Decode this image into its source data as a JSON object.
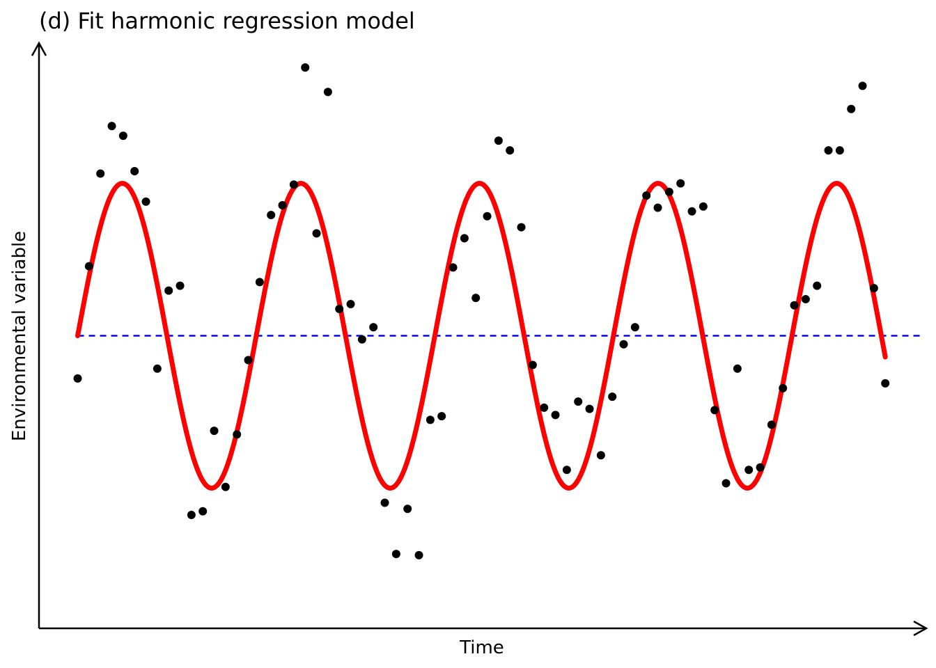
{
  "chart_data": {
    "type": "scatter",
    "title": "(d) Fit harmonic regression model",
    "xlabel": "Time",
    "ylabel": "Environmental variable",
    "x_ticks": false,
    "y_ticks": false,
    "grid": false,
    "xlim": [
      -3.4,
      74.6
    ],
    "ylim": [
      -2.4,
      2.4
    ],
    "mean_line": {
      "y": 0,
      "color": "#0000ff",
      "style": "dashed"
    },
    "fitted_curve": {
      "color": "#ff0000",
      "form": "y = amplitude * sin(2*pi*x/period)",
      "amplitude": 1.25,
      "period": 15.7,
      "x_range": [
        0,
        71
      ]
    },
    "points_color": "#000000",
    "points": [
      {
        "x": 0,
        "y": -0.35
      },
      {
        "x": 1,
        "y": 0.57
      },
      {
        "x": 2,
        "y": 1.33
      },
      {
        "x": 3,
        "y": 1.72
      },
      {
        "x": 4,
        "y": 1.64
      },
      {
        "x": 5,
        "y": 1.35
      },
      {
        "x": 6,
        "y": 1.1
      },
      {
        "x": 7,
        "y": -0.27
      },
      {
        "x": 8,
        "y": 0.37
      },
      {
        "x": 9,
        "y": 0.41
      },
      {
        "x": 10,
        "y": -1.47
      },
      {
        "x": 11,
        "y": -1.44
      },
      {
        "x": 12,
        "y": -0.78
      },
      {
        "x": 13,
        "y": -1.24
      },
      {
        "x": 14,
        "y": -0.81
      },
      {
        "x": 15,
        "y": -0.2
      },
      {
        "x": 16,
        "y": 0.44
      },
      {
        "x": 17,
        "y": 0.99
      },
      {
        "x": 18,
        "y": 1.07
      },
      {
        "x": 19,
        "y": 1.24
      },
      {
        "x": 20,
        "y": 2.2
      },
      {
        "x": 21,
        "y": 0.84
      },
      {
        "x": 22,
        "y": 2.0
      },
      {
        "x": 23,
        "y": 0.22
      },
      {
        "x": 24,
        "y": 0.26
      },
      {
        "x": 25,
        "y": -0.03
      },
      {
        "x": 26,
        "y": 0.07
      },
      {
        "x": 27,
        "y": -1.37
      },
      {
        "x": 28,
        "y": -1.79
      },
      {
        "x": 29,
        "y": -1.42
      },
      {
        "x": 30,
        "y": -1.8
      },
      {
        "x": 31,
        "y": -0.69
      },
      {
        "x": 32,
        "y": -0.66
      },
      {
        "x": 33,
        "y": 0.56
      },
      {
        "x": 34,
        "y": 0.8
      },
      {
        "x": 35,
        "y": 0.31
      },
      {
        "x": 36,
        "y": 0.98
      },
      {
        "x": 37,
        "y": 1.6
      },
      {
        "x": 38,
        "y": 1.52
      },
      {
        "x": 39,
        "y": 0.89
      },
      {
        "x": 40,
        "y": -0.24
      },
      {
        "x": 41,
        "y": -0.59
      },
      {
        "x": 42,
        "y": -0.65
      },
      {
        "x": 43,
        "y": -1.1
      },
      {
        "x": 44,
        "y": -0.54
      },
      {
        "x": 45,
        "y": -0.6
      },
      {
        "x": 46,
        "y": -0.98
      },
      {
        "x": 47,
        "y": -0.5
      },
      {
        "x": 48,
        "y": -0.07
      },
      {
        "x": 49,
        "y": 0.07
      },
      {
        "x": 50,
        "y": 1.15
      },
      {
        "x": 51,
        "y": 1.05
      },
      {
        "x": 52,
        "y": 1.18
      },
      {
        "x": 53,
        "y": 1.25
      },
      {
        "x": 54,
        "y": 1.02
      },
      {
        "x": 55,
        "y": 1.06
      },
      {
        "x": 56,
        "y": -0.61
      },
      {
        "x": 57,
        "y": -1.21
      },
      {
        "x": 58,
        "y": -0.27
      },
      {
        "x": 59,
        "y": -1.1
      },
      {
        "x": 60,
        "y": -1.08
      },
      {
        "x": 61,
        "y": -0.73
      },
      {
        "x": 62,
        "y": -0.43
      },
      {
        "x": 63,
        "y": 0.25
      },
      {
        "x": 64,
        "y": 0.3
      },
      {
        "x": 65,
        "y": 0.41
      },
      {
        "x": 66,
        "y": 1.52
      },
      {
        "x": 67,
        "y": 1.52
      },
      {
        "x": 68,
        "y": 1.86
      },
      {
        "x": 69,
        "y": 2.05
      },
      {
        "x": 70,
        "y": 0.39
      },
      {
        "x": 71,
        "y": -0.39
      }
    ]
  }
}
